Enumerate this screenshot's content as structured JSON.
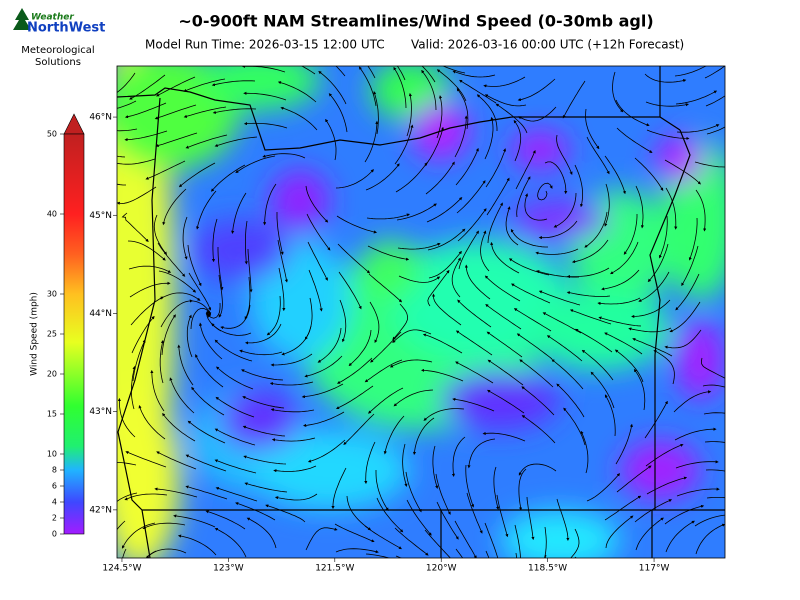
{
  "logo": {
    "line1": "Weather",
    "line2": "NorthWest",
    "caption1": "Meteorological",
    "caption2": "Solutions"
  },
  "header": {
    "title": "~0-900ft NAM Streamlines/Wind Speed (0-30mb agl)",
    "model_run": "Model Run Time: 2026-03-15 12:00 UTC",
    "valid": "Valid: 2026-03-16 00:00 UTC  (+12h Forecast)"
  },
  "colorbar": {
    "label": "Wind Speed (mph)",
    "range": [
      0,
      50
    ],
    "ticks": [
      0,
      2,
      4,
      6,
      8,
      10,
      15,
      20,
      25,
      30,
      40,
      50
    ]
  },
  "map": {
    "lon_range": [
      -124.57,
      -116.0
    ],
    "lat_range": [
      41.51,
      46.52
    ],
    "lat_ticks": [
      {
        "value": 46,
        "label": "46°N"
      },
      {
        "value": 45,
        "label": "45°N"
      },
      {
        "value": 44,
        "label": "44°N"
      },
      {
        "value": 43,
        "label": "43°N"
      },
      {
        "value": 42,
        "label": "42°N"
      }
    ],
    "lon_ticks": [
      {
        "value": -124.5,
        "label": "124.5°W"
      },
      {
        "value": -123,
        "label": "123°W"
      },
      {
        "value": -121.5,
        "label": "121.5°W"
      },
      {
        "value": -120,
        "label": "120°W"
      },
      {
        "value": -118.5,
        "label": "118.5°W"
      },
      {
        "value": -117,
        "label": "117°W"
      }
    ]
  }
}
